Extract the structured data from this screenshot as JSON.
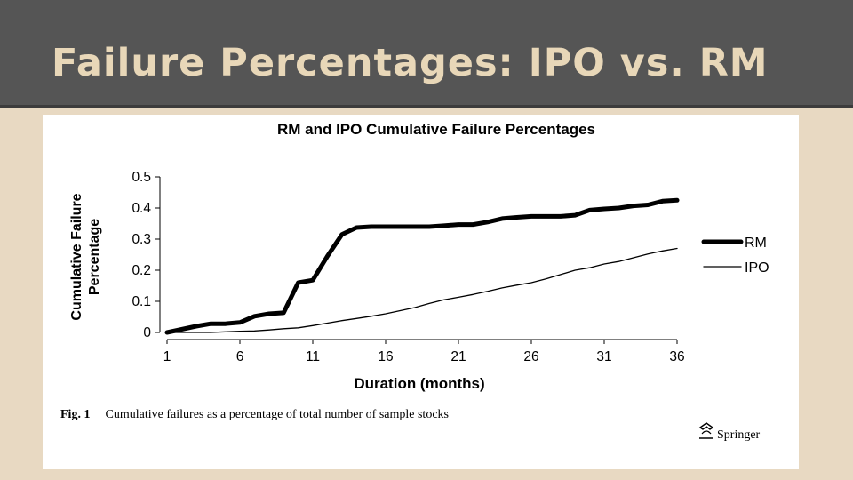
{
  "slide": {
    "title": "Failure Percentages: IPO vs. RM"
  },
  "figure": {
    "caption_label": "Fig. 1",
    "caption_text": "Cumulative failures as a percentage of total number of sample stocks",
    "publisher": "Springer"
  },
  "colors": {
    "header_bg": "#555555",
    "title_text": "#e8d7b8",
    "slide_bg": "#e8d9c2",
    "series": "#000000"
  },
  "chart_data": {
    "type": "line",
    "title": "RM and IPO Cumulative Failure Percentages",
    "xlabel": "Duration (months)",
    "ylabel_lines": [
      "Cumulative Failure",
      "Percentage"
    ],
    "xlim": [
      1,
      36
    ],
    "ylim": [
      0,
      0.5
    ],
    "xticks": [
      1,
      6,
      11,
      16,
      21,
      26,
      31,
      36
    ],
    "yticks": [
      0,
      0.1,
      0.2,
      0.3,
      0.4,
      0.5
    ],
    "ytick_labels": [
      "0",
      "0.1",
      "0.2",
      "0.3",
      "0.4",
      "0.5"
    ],
    "legend_position": "right",
    "grid": false,
    "series": [
      {
        "name": "RM",
        "style": "thick",
        "x": [
          1,
          2,
          3,
          4,
          5,
          6,
          7,
          8,
          9,
          10,
          11,
          12,
          13,
          14,
          15,
          16,
          17,
          18,
          19,
          20,
          21,
          22,
          23,
          24,
          25,
          26,
          27,
          28,
          29,
          30,
          31,
          32,
          33,
          34,
          35,
          36
        ],
        "y": [
          0,
          0.01,
          0.02,
          0.028,
          0.028,
          0.032,
          0.052,
          0.06,
          0.063,
          0.16,
          0.168,
          0.245,
          0.315,
          0.337,
          0.34,
          0.34,
          0.34,
          0.34,
          0.34,
          0.343,
          0.347,
          0.347,
          0.355,
          0.366,
          0.37,
          0.373,
          0.373,
          0.373,
          0.377,
          0.393,
          0.397,
          0.4,
          0.407,
          0.41,
          0.422,
          0.425
        ]
      },
      {
        "name": "IPO",
        "style": "thin",
        "x": [
          1,
          2,
          3,
          4,
          5,
          6,
          7,
          8,
          9,
          10,
          11,
          12,
          13,
          14,
          15,
          16,
          17,
          18,
          19,
          20,
          21,
          22,
          23,
          24,
          25,
          26,
          27,
          28,
          29,
          30,
          31,
          32,
          33,
          34,
          35,
          36
        ],
        "y": [
          0,
          0,
          0,
          0,
          0.002,
          0.004,
          0.005,
          0.008,
          0.012,
          0.015,
          0.022,
          0.03,
          0.038,
          0.045,
          0.052,
          0.06,
          0.07,
          0.08,
          0.093,
          0.105,
          0.113,
          0.122,
          0.132,
          0.143,
          0.152,
          0.16,
          0.172,
          0.186,
          0.2,
          0.208,
          0.22,
          0.228,
          0.24,
          0.252,
          0.262,
          0.27
        ]
      }
    ]
  }
}
